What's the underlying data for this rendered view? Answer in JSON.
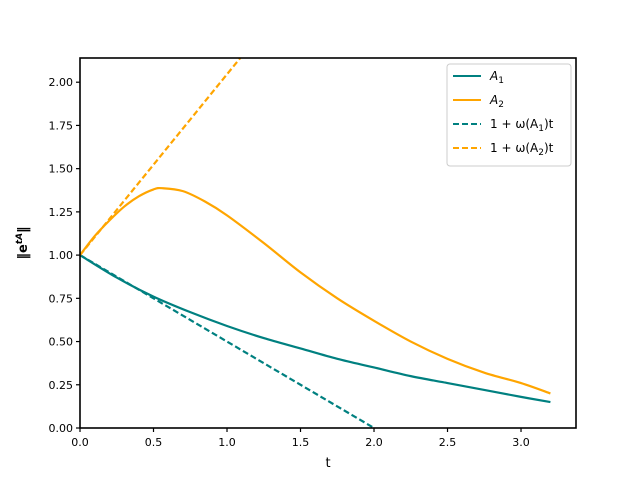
{
  "chart_data": {
    "type": "line",
    "title": "",
    "xlabel": "t",
    "ylabel": "‖e^{tA}‖",
    "xlim": [
      0,
      3.374
    ],
    "ylim": [
      0,
      2.14
    ],
    "grid": false,
    "legend_position": "upper right",
    "x_ticks": [
      "0.0",
      "0.5",
      "1.0",
      "1.5",
      "2.0",
      "2.5",
      "3.0"
    ],
    "x_tick_values": [
      0,
      0.5,
      1.0,
      1.5,
      2.0,
      2.5,
      3.0
    ],
    "y_ticks": [
      "0.00",
      "0.25",
      "0.50",
      "0.75",
      "1.00",
      "1.25",
      "1.50",
      "1.75",
      "2.00"
    ],
    "y_tick_values": [
      0,
      0.25,
      0.5,
      0.75,
      1.0,
      1.25,
      1.5,
      1.75,
      2.0
    ],
    "series": [
      {
        "name": "A_1",
        "label_main": "A",
        "label_sub": "1",
        "color": "#008080",
        "style": "solid",
        "x": [
          0,
          0.25,
          0.5,
          0.75,
          1.0,
          1.25,
          1.5,
          1.75,
          2.0,
          2.25,
          2.5,
          2.75,
          3.0,
          3.2
        ],
        "y": [
          1.0,
          0.87,
          0.76,
          0.67,
          0.59,
          0.52,
          0.46,
          0.4,
          0.35,
          0.3,
          0.26,
          0.22,
          0.18,
          0.15
        ]
      },
      {
        "name": "A_2",
        "label_main": "A",
        "label_sub": "2",
        "color": "#FFA500",
        "style": "solid",
        "x": [
          0,
          0.1,
          0.2,
          0.3,
          0.4,
          0.5,
          0.56,
          0.7,
          0.85,
          1.0,
          1.25,
          1.5,
          1.75,
          2.0,
          2.25,
          2.5,
          2.75,
          3.0,
          3.2
        ],
        "y": [
          1.0,
          1.11,
          1.2,
          1.28,
          1.34,
          1.38,
          1.387,
          1.37,
          1.31,
          1.23,
          1.07,
          0.9,
          0.75,
          0.62,
          0.5,
          0.4,
          0.32,
          0.26,
          0.2
        ]
      },
      {
        "name": "1+ω(A_1)t",
        "label_pre": "1 + ω(A",
        "label_sub": "1",
        "label_post": ")t",
        "color": "#008080",
        "style": "dashed",
        "x": [
          0,
          2.0
        ],
        "y": [
          1.0,
          0.0
        ]
      },
      {
        "name": "1+ω(A_2)t",
        "label_pre": "1 + ω(A",
        "label_sub": "2",
        "label_post": ")t",
        "color": "#FFA500",
        "style": "dashed",
        "x": [
          0,
          1.09
        ],
        "y": [
          1.0,
          2.14
        ]
      }
    ]
  }
}
